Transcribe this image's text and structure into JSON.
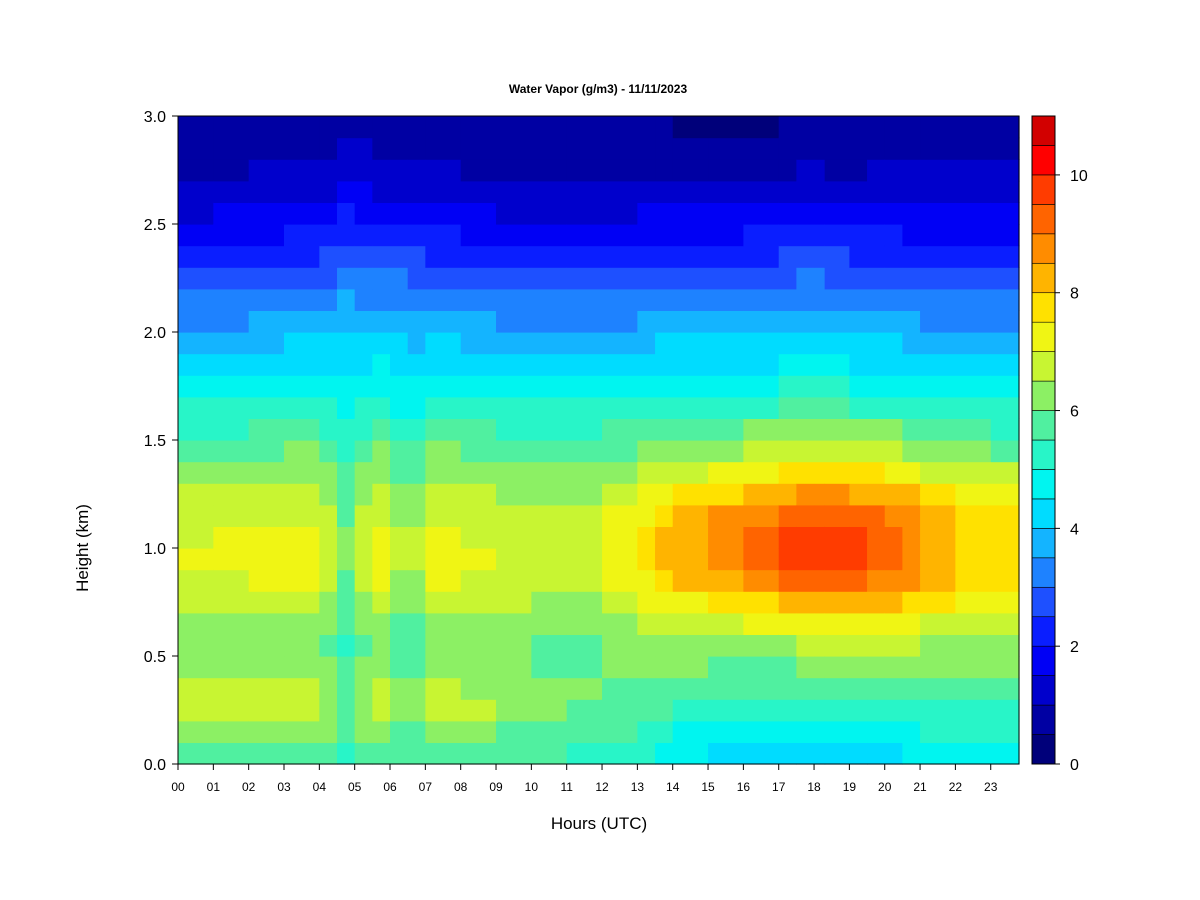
{
  "chart_data": {
    "type": "heatmap",
    "title": "Water Vapor (g/m3) - 11/11/2023",
    "xlabel": "Hours (UTC)",
    "ylabel": "Height (km)",
    "x_ticks": [
      "00",
      "01",
      "02",
      "03",
      "04",
      "05",
      "06",
      "07",
      "08",
      "09",
      "10",
      "11",
      "12",
      "13",
      "14",
      "15",
      "16",
      "17",
      "18",
      "19",
      "20",
      "21",
      "22",
      "23"
    ],
    "xlim": [
      0,
      23.8
    ],
    "y_ticks": [
      "0.0",
      "0.5",
      "1.0",
      "1.5",
      "2.0",
      "2.5",
      "3.0"
    ],
    "ylim": [
      0,
      3.0
    ],
    "colorbar": {
      "min": 0,
      "max": 11,
      "step": 0.5,
      "tick_values": [
        0,
        2,
        4,
        6,
        8,
        10
      ],
      "tick_labels": [
        "0",
        "2",
        "4",
        "6",
        "8",
        "10"
      ],
      "colors": [
        "#00007a",
        "#0000a3",
        "#0000cc",
        "#0000f5",
        "#0a1eff",
        "#1e50ff",
        "#1e82ff",
        "#14b4ff",
        "#00dcff",
        "#00f5f0",
        "#28f5c8",
        "#50f0a0",
        "#8cf064",
        "#c8f532",
        "#f0f514",
        "#ffe100",
        "#ffb400",
        "#ff8c00",
        "#ff6400",
        "#ff3c00",
        "#ff0000",
        "#d20000",
        "#a00000"
      ]
    },
    "field": {
      "x": [
        0,
        1,
        2,
        3,
        4,
        4.5,
        5,
        5.5,
        6,
        6.5,
        7,
        8,
        9,
        10,
        11,
        12,
        13,
        13.5,
        14,
        15,
        16,
        17,
        17.5,
        18,
        18.3,
        19,
        19.5,
        20,
        20.5,
        21,
        22,
        23,
        23.8
      ],
      "y": [
        0,
        0.1,
        0.2,
        0.3,
        0.4,
        0.5,
        0.6,
        0.7,
        0.8,
        0.9,
        1.0,
        1.1,
        1.2,
        1.3,
        1.4,
        1.5,
        1.6,
        1.7,
        1.8,
        1.9,
        2.0,
        2.1,
        2.2,
        2.3,
        2.4,
        2.5,
        2.6,
        2.7,
        2.8,
        2.9,
        3.0
      ],
      "profiles": [
        {
          "x": 0,
          "v": [
            5.6,
            5.9,
            6.4,
            6.6,
            6.4,
            6.1,
            6.2,
            6.5,
            6.8,
            7.0,
            7.0,
            6.9,
            6.7,
            6.4,
            6.0,
            5.6,
            5.2,
            4.8,
            4.4,
            4.0,
            3.6,
            3.2,
            2.8,
            2.4,
            2.0,
            1.6,
            1.3,
            1.0,
            0.8,
            0.7,
            0.6
          ]
        },
        {
          "x": 2,
          "v": [
            5.7,
            6.0,
            6.6,
            6.9,
            6.5,
            6.2,
            6.3,
            6.6,
            6.9,
            7.1,
            7.1,
            7.0,
            6.8,
            6.5,
            6.1,
            5.7,
            5.3,
            4.9,
            4.5,
            4.1,
            3.7,
            3.3,
            2.9,
            2.5,
            2.1,
            1.7,
            1.4,
            1.1,
            0.9,
            0.8,
            0.7
          ]
        },
        {
          "x": 4,
          "v": [
            5.7,
            6.0,
            6.6,
            6.9,
            6.5,
            6.2,
            6.3,
            6.6,
            6.9,
            7.1,
            7.1,
            7.0,
            6.8,
            6.6,
            6.3,
            5.9,
            5.5,
            5.1,
            4.7,
            4.3,
            3.9,
            3.5,
            3.1,
            2.7,
            2.3,
            1.9,
            1.5,
            1.2,
            1.0,
            0.8,
            0.7
          ]
        },
        {
          "x": 4.9,
          "v": [
            5.0,
            5.3,
            5.6,
            5.7,
            5.6,
            5.3,
            5.3,
            5.5,
            5.7,
            5.8,
            5.9,
            5.8,
            5.7,
            5.5,
            5.3,
            5.0,
            4.8,
            4.6,
            4.4,
            4.2,
            4.0,
            3.7,
            3.4,
            3.1,
            2.7,
            2.3,
            1.9,
            1.5,
            1.2,
            1.0,
            0.8
          ]
        },
        {
          "x": 5.5,
          "v": [
            5.9,
            6.2,
            6.8,
            7.2,
            6.7,
            6.3,
            6.4,
            6.8,
            7.2,
            7.4,
            7.5,
            7.4,
            7.1,
            6.8,
            6.4,
            6.0,
            5.6,
            5.2,
            4.8,
            4.4,
            4.0,
            3.6,
            3.2,
            2.8,
            2.4,
            2.0,
            1.6,
            1.3,
            1.0,
            0.9,
            0.8
          ]
        },
        {
          "x": 6.5,
          "v": [
            5.3,
            5.6,
            5.9,
            6.0,
            5.9,
            5.6,
            5.6,
            5.8,
            6.1,
            6.3,
            6.4,
            6.3,
            6.1,
            5.9,
            5.6,
            5.3,
            5.0,
            4.7,
            4.4,
            4.1,
            3.8,
            3.5,
            3.2,
            2.9,
            2.5,
            2.1,
            1.7,
            1.3,
            1.0,
            0.8,
            0.7
          ]
        },
        {
          "x": 7.5,
          "v": [
            5.8,
            6.1,
            6.6,
            6.9,
            6.5,
            6.2,
            6.3,
            6.6,
            6.9,
            7.1,
            7.1,
            7.0,
            6.8,
            6.5,
            6.2,
            5.8,
            5.4,
            5.0,
            4.6,
            4.2,
            3.8,
            3.4,
            3.0,
            2.6,
            2.2,
            1.8,
            1.4,
            1.1,
            0.9,
            0.8,
            0.7
          ]
        },
        {
          "x": 10,
          "v": [
            5.4,
            5.7,
            6.1,
            6.2,
            6.1,
            5.9,
            6.0,
            6.3,
            6.6,
            6.8,
            6.9,
            6.8,
            6.6,
            6.3,
            6.0,
            5.6,
            5.2,
            4.8,
            4.4,
            4.0,
            3.6,
            3.2,
            2.8,
            2.4,
            2.0,
            1.6,
            1.3,
            1.0,
            0.8,
            0.7,
            0.6
          ]
        },
        {
          "x": 12,
          "v": [
            5.2,
            5.5,
            5.8,
            6.0,
            6.0,
            5.9,
            6.0,
            6.3,
            6.6,
            6.8,
            6.9,
            6.8,
            6.6,
            6.3,
            6.0,
            5.6,
            5.2,
            4.8,
            4.4,
            4.0,
            3.6,
            3.2,
            2.8,
            2.4,
            2.0,
            1.6,
            1.2,
            0.9,
            0.7,
            0.6,
            0.5
          ]
        },
        {
          "x": 13.5,
          "v": [
            4.8,
            5.1,
            5.5,
            5.8,
            6.0,
            6.2,
            6.4,
            6.9,
            7.4,
            7.9,
            8.0,
            7.8,
            7.4,
            6.9,
            6.4,
            5.9,
            5.5,
            5.0,
            4.6,
            4.2,
            3.8,
            3.4,
            3.0,
            2.6,
            2.2,
            1.8,
            1.4,
            1.1,
            0.8,
            0.6,
            0.5
          ]
        },
        {
          "x": 15,
          "v": [
            4.2,
            4.6,
            5.0,
            5.4,
            5.8,
            6.1,
            6.5,
            7.2,
            8.0,
            8.6,
            8.8,
            8.6,
            8.1,
            7.4,
            6.7,
            6.1,
            5.6,
            5.1,
            4.6,
            4.2,
            3.8,
            3.3,
            2.9,
            2.5,
            2.1,
            1.7,
            1.3,
            1.0,
            0.7,
            0.5,
            0.4
          ]
        },
        {
          "x": 16.5,
          "v": [
            3.9,
            4.4,
            4.9,
            5.3,
            5.7,
            6.1,
            6.6,
            7.4,
            8.4,
            9.1,
            9.3,
            9.1,
            8.6,
            7.8,
            7.0,
            6.3,
            5.7,
            5.2,
            4.7,
            4.2,
            3.8,
            3.4,
            3.0,
            2.6,
            2.2,
            1.8,
            1.4,
            1.0,
            0.7,
            0.5,
            0.3
          ]
        },
        {
          "x": 18,
          "v": [
            4.0,
            4.5,
            5.0,
            5.4,
            5.8,
            6.3,
            6.9,
            7.8,
            8.9,
            9.7,
            10.1,
            9.8,
            9.1,
            8.3,
            7.4,
            6.6,
            6.0,
            5.4,
            4.9,
            4.5,
            4.1,
            3.7,
            3.3,
            2.9,
            2.5,
            2.1,
            1.6,
            1.2,
            0.9,
            0.7,
            0.5
          ]
        },
        {
          "x": 19,
          "v": [
            4.1,
            4.6,
            5.1,
            5.5,
            5.9,
            6.3,
            6.8,
            7.6,
            8.7,
            9.4,
            9.7,
            9.5,
            8.9,
            8.1,
            7.2,
            6.4,
            5.8,
            5.2,
            4.7,
            4.3,
            3.9,
            3.5,
            3.1,
            2.6,
            2.2,
            1.8,
            1.4,
            1.1,
            0.8,
            0.6,
            0.5
          ]
        },
        {
          "x": 20.3,
          "v": [
            4.3,
            4.7,
            5.2,
            5.6,
            6.0,
            6.3,
            6.8,
            7.5,
            8.5,
            9.2,
            9.4,
            9.2,
            8.7,
            7.9,
            7.0,
            6.3,
            5.7,
            5.1,
            4.6,
            4.2,
            3.8,
            3.4,
            3.0,
            2.6,
            2.2,
            1.8,
            1.5,
            1.2,
            0.9,
            0.7,
            0.6
          ]
        },
        {
          "x": 22,
          "v": [
            4.4,
            4.8,
            5.3,
            5.7,
            6.0,
            6.3,
            6.6,
            7.1,
            7.6,
            7.9,
            8.0,
            7.9,
            7.5,
            6.9,
            6.3,
            5.8,
            5.3,
            4.8,
            4.4,
            4.0,
            3.6,
            3.2,
            2.8,
            2.4,
            2.0,
            1.7,
            1.4,
            1.1,
            0.9,
            0.7,
            0.6
          ]
        },
        {
          "x": 23.8,
          "v": [
            4.4,
            4.8,
            5.3,
            5.6,
            5.9,
            6.2,
            6.5,
            6.9,
            7.3,
            7.6,
            7.7,
            7.6,
            7.3,
            6.8,
            6.2,
            5.7,
            5.2,
            4.8,
            4.4,
            4.0,
            3.6,
            3.2,
            2.8,
            2.4,
            2.0,
            1.7,
            1.4,
            1.1,
            0.9,
            0.7,
            0.6
          ]
        }
      ]
    }
  }
}
